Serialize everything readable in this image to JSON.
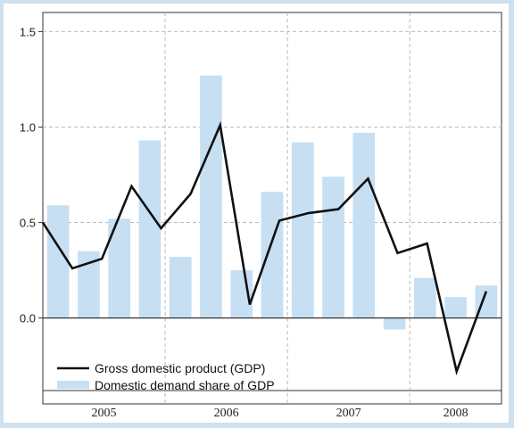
{
  "chart_data": {
    "type": "bar+line",
    "title": "",
    "xlabel": "",
    "ylabel": "",
    "ylim": [
      -0.45,
      1.6
    ],
    "yticks": [
      "1.5",
      "1.0",
      "0.5",
      "0.0"
    ],
    "years": [
      "2005",
      "2006",
      "2007",
      "2008"
    ],
    "bars": {
      "name": "Domestic demand share of GDP",
      "color": "#c6dff3",
      "values": [
        0.59,
        0.35,
        0.52,
        0.93,
        0.32,
        1.27,
        0.25,
        0.66,
        0.92,
        0.74,
        0.97,
        -0.06,
        0.21,
        0.11,
        0.17
      ]
    },
    "line": {
      "name": "Gross domestic product (GDP)",
      "color": "#111111",
      "values": [
        0.5,
        0.26,
        0.31,
        0.69,
        0.47,
        0.65,
        1.01,
        0.07,
        0.51,
        0.55,
        0.57,
        0.73,
        0.34,
        0.39,
        -0.28,
        0.14
      ]
    },
    "legend": "bottom-left",
    "grid": true
  }
}
